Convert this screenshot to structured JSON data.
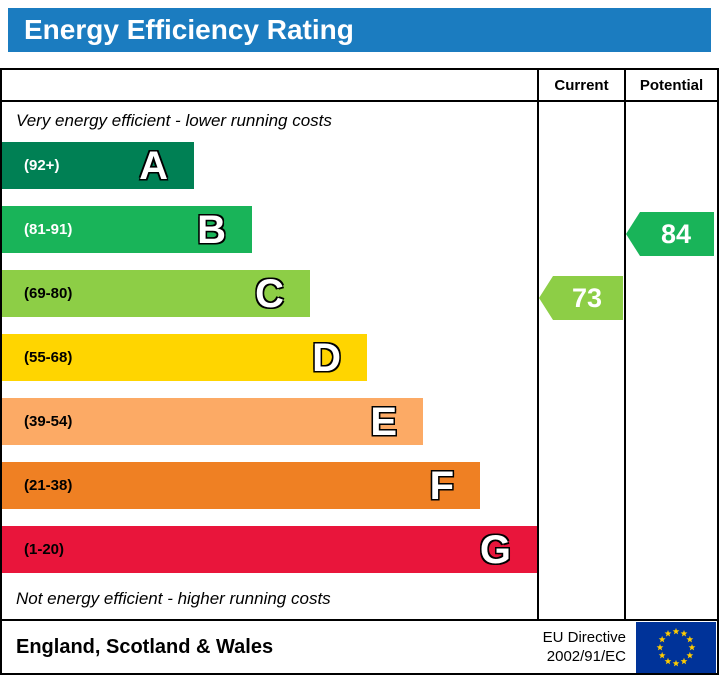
{
  "title": "Energy Efficiency Rating",
  "colors": {
    "header_bg": "#1b7cc0",
    "eu_flag_bg": "#003399",
    "eu_star": "#ffcc00"
  },
  "table": {
    "current_header": "Current",
    "potential_header": "Potential",
    "top_caption": "Very energy efficient - lower running costs",
    "bottom_caption": "Not energy efficient - higher running costs"
  },
  "bands": [
    {
      "letter": "A",
      "range": "(92+)",
      "color": "#008054",
      "text_color": "#ffffff"
    },
    {
      "letter": "B",
      "range": "(81-91)",
      "color": "#19b459",
      "text_color": "#ffffff"
    },
    {
      "letter": "C",
      "range": "(69-80)",
      "color": "#8dce46",
      "text_color": "#000000"
    },
    {
      "letter": "D",
      "range": "(55-68)",
      "color": "#ffd500",
      "text_color": "#000000"
    },
    {
      "letter": "E",
      "range": "(39-54)",
      "color": "#fcaa65",
      "text_color": "#000000"
    },
    {
      "letter": "F",
      "range": "(21-38)",
      "color": "#ef8023",
      "text_color": "#000000"
    },
    {
      "letter": "G",
      "range": "(1-20)",
      "color": "#e9153b",
      "text_color": "#000000"
    }
  ],
  "current": {
    "value": "73",
    "band": "C",
    "color": "#8dce46"
  },
  "potential": {
    "value": "84",
    "band": "B",
    "color": "#19b459"
  },
  "footer": {
    "region": "England, Scotland & Wales",
    "directive_line1": "EU Directive",
    "directive_line2": "2002/91/EC"
  },
  "chart_data": {
    "type": "bar",
    "title": "Energy Efficiency Rating",
    "categories": [
      "A (92+)",
      "B (81-91)",
      "C (69-80)",
      "D (55-68)",
      "E (39-54)",
      "F (21-38)",
      "G (1-20)"
    ],
    "values": [
      1,
      2,
      3,
      4,
      5,
      6,
      7
    ],
    "annotations": [
      {
        "label": "Current",
        "value": 73,
        "band": "C"
      },
      {
        "label": "Potential",
        "value": 84,
        "band": "B"
      }
    ],
    "top_caption": "Very energy efficient - lower running costs",
    "bottom_caption": "Not energy efficient - higher running costs",
    "region": "England, Scotland & Wales",
    "directive": "EU Directive 2002/91/EC"
  }
}
